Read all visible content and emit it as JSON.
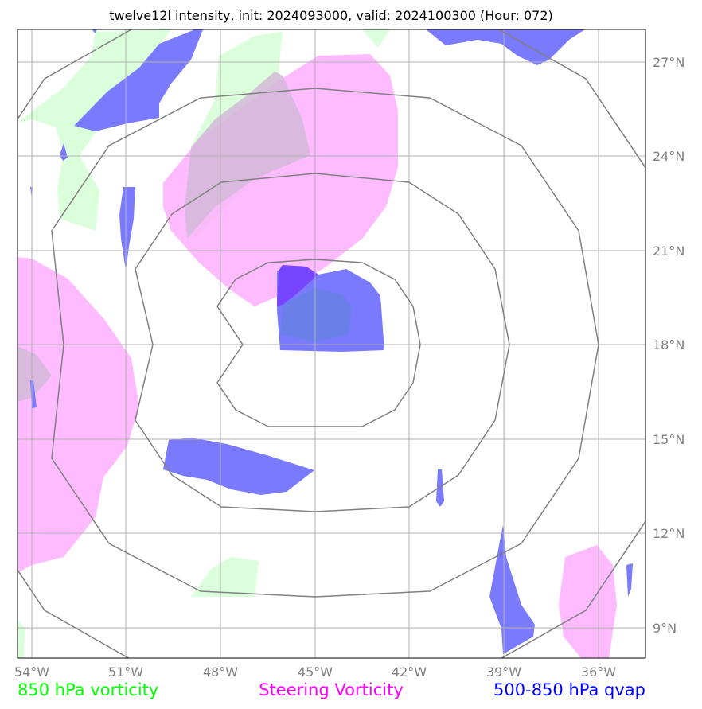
{
  "title": "twelve12l intensity, init: 2024093000, valid: 2024100300 (Hour: 072)",
  "lon_labels": [
    "54°W",
    "51°W",
    "48°W",
    "45°W",
    "42°W",
    "39°W",
    "36°W"
  ],
  "lat_labels": [
    "27°N",
    "24°N",
    "21°N",
    "18°N",
    "15°N",
    "12°N",
    "9°N"
  ],
  "legend": [
    {
      "label": "850 hPa vorticity",
      "color": "#00ff00"
    },
    {
      "label": "Steering Vorticity",
      "color": "#ff00ff"
    },
    {
      "label": "500-850 hPa qvap",
      "color": "#0000ff"
    }
  ],
  "colors": {
    "vorticity_850": "#ccffcc",
    "steering_vorticity": "#ffaaff",
    "qvap": "#6666ff",
    "grid": "#b0b0b0",
    "range_rings": "#808080"
  },
  "map": {
    "lon_range": [
      -54.5,
      -34.5
    ],
    "lat_range": [
      8,
      28
    ],
    "center": {
      "lon": -45,
      "lat": 18
    },
    "range_ring_radius_deg": [
      3,
      6,
      9,
      12
    ]
  }
}
